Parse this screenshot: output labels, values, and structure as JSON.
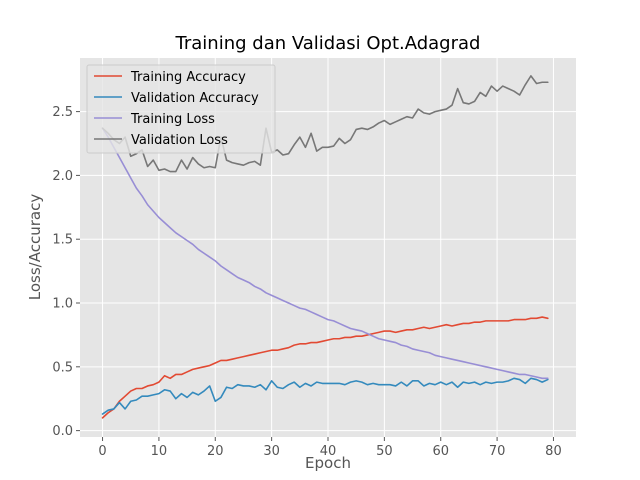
{
  "chart_data": {
    "type": "line",
    "title": "Training dan Validasi Opt.Adagrad",
    "xlabel": "Epoch",
    "ylabel": "Loss/Accuracy",
    "xlim": [
      -4,
      84
    ],
    "ylim": [
      -0.05,
      2.92
    ],
    "x_ticks": [
      0,
      10,
      20,
      30,
      40,
      50,
      60,
      70,
      80
    ],
    "y_ticks": [
      0.0,
      0.5,
      1.0,
      1.5,
      2.0,
      2.5
    ],
    "y_tick_labels": [
      "0.0",
      "0.5",
      "1.0",
      "1.5",
      "2.0",
      "2.5"
    ],
    "grid": true,
    "legend_position": "top-left",
    "background_color": "#e5e5e5",
    "series": [
      {
        "name": "Training Accuracy",
        "color": "#e24a33",
        "x": [
          0,
          1,
          2,
          3,
          4,
          5,
          6,
          7,
          8,
          9,
          10,
          11,
          12,
          13,
          14,
          15,
          16,
          17,
          18,
          19,
          20,
          21,
          22,
          23,
          24,
          25,
          26,
          27,
          28,
          29,
          30,
          31,
          32,
          33,
          34,
          35,
          36,
          37,
          38,
          39,
          40,
          41,
          42,
          43,
          44,
          45,
          46,
          47,
          48,
          49,
          50,
          51,
          52,
          53,
          54,
          55,
          56,
          57,
          58,
          59,
          60,
          61,
          62,
          63,
          64,
          65,
          66,
          67,
          68,
          69,
          70,
          71,
          72,
          73,
          74,
          75,
          76,
          77,
          78,
          79
        ],
        "values": [
          0.1,
          0.14,
          0.17,
          0.23,
          0.27,
          0.31,
          0.33,
          0.33,
          0.35,
          0.36,
          0.38,
          0.43,
          0.41,
          0.44,
          0.44,
          0.46,
          0.48,
          0.49,
          0.5,
          0.51,
          0.53,
          0.55,
          0.55,
          0.56,
          0.57,
          0.58,
          0.59,
          0.6,
          0.61,
          0.62,
          0.63,
          0.63,
          0.64,
          0.65,
          0.67,
          0.68,
          0.68,
          0.69,
          0.69,
          0.7,
          0.71,
          0.72,
          0.72,
          0.73,
          0.73,
          0.74,
          0.74,
          0.75,
          0.76,
          0.77,
          0.78,
          0.78,
          0.77,
          0.78,
          0.79,
          0.79,
          0.8,
          0.81,
          0.8,
          0.81,
          0.82,
          0.83,
          0.82,
          0.83,
          0.84,
          0.84,
          0.85,
          0.85,
          0.86,
          0.86,
          0.86,
          0.86,
          0.86,
          0.87,
          0.87,
          0.87,
          0.88,
          0.88,
          0.89,
          0.88
        ]
      },
      {
        "name": "Validation Accuracy",
        "color": "#348abd",
        "x": [
          0,
          1,
          2,
          3,
          4,
          5,
          6,
          7,
          8,
          9,
          10,
          11,
          12,
          13,
          14,
          15,
          16,
          17,
          18,
          19,
          20,
          21,
          22,
          23,
          24,
          25,
          26,
          27,
          28,
          29,
          30,
          31,
          32,
          33,
          34,
          35,
          36,
          37,
          38,
          39,
          40,
          41,
          42,
          43,
          44,
          45,
          46,
          47,
          48,
          49,
          50,
          51,
          52,
          53,
          54,
          55,
          56,
          57,
          58,
          59,
          60,
          61,
          62,
          63,
          64,
          65,
          66,
          67,
          68,
          69,
          70,
          71,
          72,
          73,
          74,
          75,
          76,
          77,
          78,
          79
        ],
        "values": [
          0.13,
          0.16,
          0.17,
          0.22,
          0.17,
          0.23,
          0.24,
          0.27,
          0.27,
          0.28,
          0.29,
          0.32,
          0.31,
          0.25,
          0.29,
          0.26,
          0.3,
          0.28,
          0.31,
          0.35,
          0.23,
          0.26,
          0.34,
          0.33,
          0.36,
          0.35,
          0.35,
          0.34,
          0.36,
          0.32,
          0.39,
          0.34,
          0.33,
          0.36,
          0.38,
          0.34,
          0.37,
          0.35,
          0.38,
          0.37,
          0.37,
          0.37,
          0.37,
          0.36,
          0.38,
          0.39,
          0.38,
          0.36,
          0.37,
          0.36,
          0.36,
          0.36,
          0.35,
          0.38,
          0.35,
          0.39,
          0.39,
          0.35,
          0.37,
          0.36,
          0.38,
          0.36,
          0.38,
          0.34,
          0.38,
          0.37,
          0.38,
          0.36,
          0.38,
          0.37,
          0.38,
          0.38,
          0.39,
          0.41,
          0.4,
          0.37,
          0.41,
          0.4,
          0.38,
          0.4
        ]
      },
      {
        "name": "Training Loss",
        "color": "#988ed5",
        "x": [
          0,
          1,
          2,
          3,
          4,
          5,
          6,
          7,
          8,
          9,
          10,
          11,
          12,
          13,
          14,
          15,
          16,
          17,
          18,
          19,
          20,
          21,
          22,
          23,
          24,
          25,
          26,
          27,
          28,
          29,
          30,
          31,
          32,
          33,
          34,
          35,
          36,
          37,
          38,
          39,
          40,
          41,
          42,
          43,
          44,
          45,
          46,
          47,
          48,
          49,
          50,
          51,
          52,
          53,
          54,
          55,
          56,
          57,
          58,
          59,
          60,
          61,
          62,
          63,
          64,
          65,
          66,
          67,
          68,
          69,
          70,
          71,
          72,
          73,
          74,
          75,
          76,
          77,
          78,
          79
        ],
        "values": [
          2.37,
          2.3,
          2.22,
          2.14,
          2.06,
          1.98,
          1.9,
          1.84,
          1.77,
          1.72,
          1.67,
          1.63,
          1.59,
          1.55,
          1.52,
          1.49,
          1.46,
          1.42,
          1.39,
          1.36,
          1.33,
          1.29,
          1.26,
          1.23,
          1.2,
          1.18,
          1.16,
          1.13,
          1.11,
          1.08,
          1.06,
          1.04,
          1.02,
          1.0,
          0.98,
          0.96,
          0.95,
          0.93,
          0.91,
          0.89,
          0.87,
          0.86,
          0.84,
          0.82,
          0.8,
          0.79,
          0.78,
          0.76,
          0.74,
          0.72,
          0.71,
          0.7,
          0.69,
          0.67,
          0.66,
          0.64,
          0.63,
          0.62,
          0.61,
          0.59,
          0.58,
          0.57,
          0.56,
          0.55,
          0.54,
          0.53,
          0.52,
          0.51,
          0.5,
          0.49,
          0.48,
          0.47,
          0.46,
          0.45,
          0.44,
          0.44,
          0.43,
          0.42,
          0.41,
          0.41
        ]
      },
      {
        "name": "Validation Loss",
        "color": "#777777",
        "x": [
          0,
          1,
          2,
          3,
          4,
          5,
          6,
          7,
          8,
          9,
          10,
          11,
          12,
          13,
          14,
          15,
          16,
          17,
          18,
          19,
          20,
          21,
          22,
          23,
          24,
          25,
          26,
          27,
          28,
          29,
          30,
          31,
          32,
          33,
          34,
          35,
          36,
          37,
          38,
          39,
          40,
          41,
          42,
          43,
          44,
          45,
          46,
          47,
          48,
          49,
          50,
          51,
          52,
          53,
          54,
          55,
          56,
          57,
          58,
          59,
          60,
          61,
          62,
          63,
          64,
          65,
          66,
          67,
          68,
          69,
          70,
          71,
          72,
          73,
          74,
          75,
          76,
          77,
          78,
          79
        ],
        "values": [
          2.37,
          2.33,
          2.28,
          2.25,
          2.3,
          2.15,
          2.17,
          2.2,
          2.07,
          2.12,
          2.04,
          2.05,
          2.03,
          2.03,
          2.12,
          2.05,
          2.14,
          2.09,
          2.06,
          2.07,
          2.06,
          2.3,
          2.12,
          2.1,
          2.09,
          2.08,
          2.1,
          2.11,
          2.08,
          2.37,
          2.18,
          2.2,
          2.16,
          2.17,
          2.24,
          2.3,
          2.22,
          2.33,
          2.19,
          2.22,
          2.22,
          2.23,
          2.29,
          2.25,
          2.28,
          2.36,
          2.37,
          2.36,
          2.38,
          2.41,
          2.43,
          2.4,
          2.42,
          2.44,
          2.46,
          2.45,
          2.52,
          2.49,
          2.48,
          2.5,
          2.51,
          2.52,
          2.55,
          2.68,
          2.57,
          2.56,
          2.58,
          2.65,
          2.62,
          2.7,
          2.66,
          2.7,
          2.68,
          2.66,
          2.63,
          2.71,
          2.78,
          2.72,
          2.73,
          2.73
        ]
      }
    ]
  }
}
